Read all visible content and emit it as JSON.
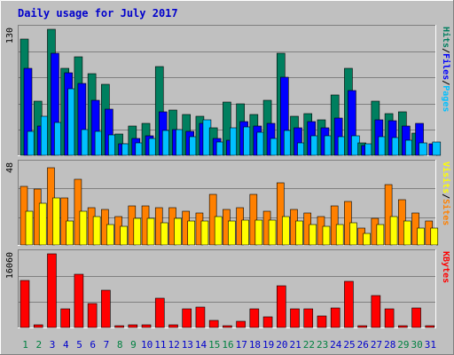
{
  "chart_data": {
    "type": "bar",
    "title": "Daily usage for July 2017",
    "colors": {
      "background": "#c0c0c0",
      "frame_light": "#ffffff",
      "frame_dark": "#808080",
      "title": "#0000cc",
      "hits": "#007f5f",
      "files": "#0000ff",
      "pages": "#00c0ff",
      "sites": "#ff8000",
      "visits": "#ffff00",
      "kbytes": "#ff0000",
      "weekday_label": "#0000cc",
      "weekend_label": "#008040",
      "grid": "#808080"
    },
    "categories": [
      "1",
      "2",
      "3",
      "4",
      "5",
      "6",
      "7",
      "8",
      "9",
      "10",
      "11",
      "12",
      "13",
      "14",
      "15",
      "16",
      "17",
      "18",
      "19",
      "20",
      "21",
      "22",
      "23",
      "24",
      "25",
      "26",
      "27",
      "28",
      "29",
      "30",
      "31"
    ],
    "weekend_days": [
      "1",
      "2",
      "8",
      "9",
      "15",
      "16",
      "22",
      "23",
      "29",
      "30"
    ],
    "panels": [
      {
        "name": "usage",
        "ymax_label": "130",
        "ymax": 130,
        "labels": [
          {
            "text": "Hits",
            "color": "#007f5f"
          },
          {
            "text": "/",
            "color": "#000000"
          },
          {
            "text": "Files",
            "color": "#0000ff"
          },
          {
            "text": "/",
            "color": "#000000"
          },
          {
            "text": "Pages",
            "color": "#00c0ff"
          }
        ],
        "series": [
          {
            "name": "Hits",
            "color": "#007f5f",
            "values": [
              120,
              56,
              130,
              90,
              102,
              84,
              73,
              22,
              30,
              33,
              92,
              47,
              42,
              40,
              28,
              55,
              53,
              42,
              57,
              105,
              40,
              43,
              37,
              62,
              90,
              13,
              56,
              43,
              45,
              23,
              0
            ]
          },
          {
            "name": "Files",
            "color": "#0000ff",
            "values": [
              90,
              30,
              105,
              85,
              74,
              57,
              48,
              12,
              17,
              20,
              45,
              27,
              25,
              33,
              17,
              16,
              35,
              30,
              33,
              81,
              28,
              35,
              28,
              38,
              67,
              10,
              37,
              36,
              30,
              33,
              12
            ]
          },
          {
            "name": "Pages",
            "color": "#00c0ff",
            "values": [
              25,
              40,
              34,
              69,
              27,
              25,
              21,
              12,
              13,
              17,
              26,
              27,
              19,
              37,
              14,
              28,
              29,
              24,
              17,
              26,
              13,
              20,
              20,
              19,
              20,
              12,
              19,
              18,
              16,
              13,
              14
            ]
          }
        ]
      },
      {
        "name": "visits",
        "ymax_label": "48",
        "ymax": 48,
        "labels": [
          {
            "text": "Visits",
            "color": "#ffff00"
          },
          {
            "text": "/",
            "color": "#000000"
          },
          {
            "text": "Sites",
            "color": "#ff8000"
          }
        ],
        "series": [
          {
            "name": "Sites",
            "color": "#ff8000",
            "values": [
              35,
              33,
              46,
              28,
              39,
              22,
              21,
              17,
              23,
              23,
              22,
              22,
              20,
              19,
              30,
              21,
              22,
              30,
              20,
              37,
              21,
              19,
              17,
              23,
              26,
              10,
              16,
              36,
              27,
              19,
              14
            ]
          },
          {
            "name": "Visits",
            "color": "#ffff00",
            "values": [
              20,
              25,
              28,
              14,
              20,
              17,
              12,
              11,
              16,
              16,
              13,
              16,
              14,
              14,
              17,
              14,
              15,
              15,
              15,
              17,
              14,
              12,
              11,
              12,
              13,
              7,
              12,
              17,
              14,
              10,
              10
            ]
          }
        ]
      },
      {
        "name": "kbytes",
        "ymax_label": "16060",
        "ymax": 16060,
        "labels": [
          {
            "text": "KBytes",
            "color": "#ff0000"
          }
        ],
        "series": [
          {
            "name": "KBytes",
            "color": "#ff0000",
            "values": [
              10160,
              530,
              16060,
              4110,
              11640,
              5260,
              8160,
              120,
              550,
              550,
              6340,
              570,
              4130,
              4500,
              1460,
              370,
              1310,
              4110,
              2240,
              9060,
              4120,
              4060,
              2550,
              4230,
              10030,
              210,
              6910,
              4140,
              210,
              4190,
              240
            ]
          }
        ]
      }
    ]
  }
}
